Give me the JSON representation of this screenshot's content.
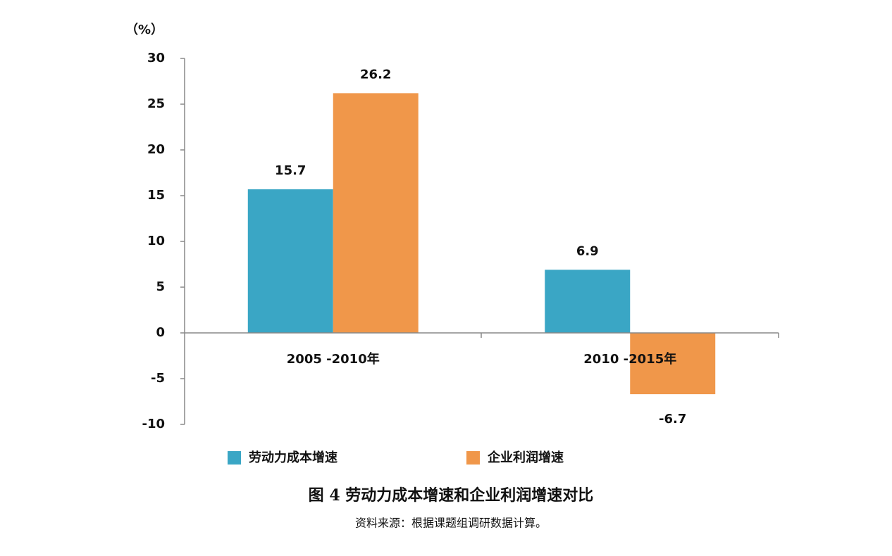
{
  "chart_data": {
    "type": "bar",
    "y_label": "（%）",
    "categories": [
      "2005 -2010年",
      "2010 -2015年"
    ],
    "series": [
      {
        "name": "劳动力成本增速",
        "color": "#3aa6c5",
        "values": [
          15.7,
          6.9
        ]
      },
      {
        "name": "企业利润增速",
        "color": "#f0974a",
        "values": [
          26.2,
          -6.7
        ]
      }
    ],
    "ylim": [
      -10,
      30
    ],
    "yticks": [
      -10,
      -5,
      0,
      5,
      10,
      15,
      20,
      25,
      30
    ],
    "title": "图 4  劳动力成本增速和企业利润增速对比",
    "source": "资料来源：根据课题组调研数据计算。"
  }
}
